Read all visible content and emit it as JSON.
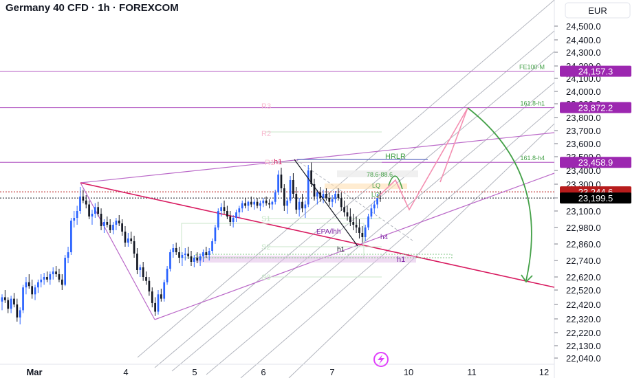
{
  "header": {
    "title": "Germany 40 CFD · 1h · FOREXCOM",
    "currency": "EUR"
  },
  "chart_data": {
    "type": "candlestick",
    "symbol": "Germany 40 CFD",
    "interval": "1h",
    "source": "FOREXCOM",
    "currency": "EUR",
    "y_axis_ticks": [
      24500,
      24400,
      24300,
      24200,
      24100,
      24000,
      23900,
      23800,
      23700,
      23600,
      23500,
      23400,
      23300,
      23200,
      23100,
      22980,
      22860,
      22740,
      22620,
      22520,
      22420,
      22320,
      22220,
      22130,
      22040
    ],
    "ylim": [
      22000,
      24600
    ],
    "x_axis_labels": [
      "Mar",
      "4",
      "5",
      "6",
      "7",
      "10",
      "11",
      "12"
    ],
    "price_labels": [
      {
        "value": "24,157.3",
        "color": "#9c27b0"
      },
      {
        "value": "23,872.2",
        "color": "#9c27b0"
      },
      {
        "value": "23,458.9",
        "color": "#9c27b0"
      },
      {
        "value": "23,244.6",
        "color": "#b71c1c"
      },
      {
        "value": "23,199.5",
        "color": "#000000"
      }
    ],
    "horizontal_levels": [
      {
        "label": "FE100-M",
        "value": 24157.3
      },
      {
        "label": "161.8-h1",
        "value": 23872.2
      },
      {
        "label": "161.8-h4",
        "value": 23458.9
      }
    ],
    "annotations": [
      "R3",
      "R2",
      "R1",
      "S1",
      "S2",
      "S3",
      "HRLR",
      "78.6-88.6",
      "LQ",
      "LQ",
      "EPA/lhh",
      "h1",
      "h1",
      "h4",
      "h1"
    ],
    "candles": [
      [
        22440,
        22490,
        22380,
        22470
      ],
      [
        22470,
        22520,
        22430,
        22450
      ],
      [
        22450,
        22470,
        22360,
        22390
      ],
      [
        22390,
        22480,
        22360,
        22460
      ],
      [
        22460,
        22500,
        22400,
        22420
      ],
      [
        22420,
        22460,
        22300,
        22330
      ],
      [
        22330,
        22400,
        22280,
        22380
      ],
      [
        22380,
        22560,
        22360,
        22540
      ],
      [
        22540,
        22620,
        22490,
        22580
      ],
      [
        22580,
        22640,
        22530,
        22550
      ],
      [
        22550,
        22600,
        22460,
        22490
      ],
      [
        22490,
        22560,
        22450,
        22540
      ],
      [
        22540,
        22600,
        22500,
        22580
      ],
      [
        22580,
        22640,
        22540,
        22600
      ],
      [
        22600,
        22650,
        22560,
        22620
      ],
      [
        22620,
        22660,
        22580,
        22600
      ],
      [
        22600,
        22660,
        22560,
        22640
      ],
      [
        22640,
        22690,
        22600,
        22660
      ],
      [
        22660,
        22700,
        22620,
        22640
      ],
      [
        22640,
        22680,
        22580,
        22600
      ],
      [
        22600,
        22640,
        22520,
        22560
      ],
      [
        22560,
        22780,
        22550,
        22760
      ],
      [
        22760,
        22840,
        22720,
        22800
      ],
      [
        22800,
        23050,
        22780,
        23030
      ],
      [
        23030,
        23100,
        22980,
        23050
      ],
      [
        23050,
        23140,
        23000,
        23100
      ],
      [
        23100,
        23280,
        23080,
        23210
      ],
      [
        23210,
        23260,
        23160,
        23180
      ],
      [
        23180,
        23220,
        23120,
        23150
      ],
      [
        23150,
        23180,
        23040,
        23060
      ],
      [
        23060,
        23110,
        23000,
        23080
      ],
      [
        23080,
        23160,
        23050,
        23130
      ],
      [
        23130,
        23170,
        23060,
        23080
      ],
      [
        23080,
        23120,
        22960,
        22990
      ],
      [
        22990,
        23040,
        22940,
        23020
      ],
      [
        23020,
        23060,
        22980,
        23000
      ],
      [
        23000,
        23040,
        22940,
        22960
      ],
      [
        22960,
        23020,
        22930,
        23000
      ],
      [
        23000,
        23050,
        22960,
        23030
      ],
      [
        23030,
        23070,
        22990,
        23010
      ],
      [
        23010,
        23040,
        22920,
        22950
      ],
      [
        22950,
        22990,
        22840,
        22870
      ],
      [
        22870,
        22940,
        22840,
        22900
      ],
      [
        22900,
        22950,
        22860,
        22880
      ],
      [
        22880,
        22920,
        22760,
        22790
      ],
      [
        22790,
        22830,
        22640,
        22670
      ],
      [
        22670,
        22710,
        22620,
        22690
      ],
      [
        22690,
        22730,
        22590,
        22620
      ],
      [
        22620,
        22660,
        22560,
        22590
      ],
      [
        22590,
        22620,
        22480,
        22510
      ],
      [
        22510,
        22540,
        22400,
        22430
      ],
      [
        22430,
        22470,
        22340,
        22370
      ],
      [
        22370,
        22520,
        22350,
        22490
      ],
      [
        22490,
        22530,
        22440,
        22460
      ],
      [
        22460,
        22600,
        22440,
        22580
      ],
      [
        22580,
        22700,
        22560,
        22680
      ],
      [
        22680,
        22820,
        22660,
        22800
      ],
      [
        22800,
        22860,
        22760,
        22830
      ],
      [
        22830,
        22870,
        22780,
        22800
      ],
      [
        22800,
        22840,
        22720,
        22760
      ],
      [
        22760,
        22800,
        22700,
        22780
      ],
      [
        22780,
        22830,
        22740,
        22790
      ],
      [
        22790,
        22840,
        22750,
        22770
      ],
      [
        22770,
        22810,
        22700,
        22730
      ],
      [
        22730,
        22780,
        22690,
        22760
      ],
      [
        22760,
        22800,
        22720,
        22740
      ],
      [
        22740,
        22790,
        22700,
        22770
      ],
      [
        22770,
        22820,
        22730,
        22800
      ],
      [
        22800,
        22840,
        22760,
        22780
      ],
      [
        22780,
        22830,
        22740,
        22810
      ],
      [
        22810,
        22900,
        22790,
        22880
      ],
      [
        22880,
        23000,
        22860,
        22980
      ],
      [
        22980,
        23120,
        22960,
        23100
      ],
      [
        23100,
        23160,
        23060,
        23130
      ],
      [
        23130,
        23180,
        23080,
        23100
      ],
      [
        23100,
        23140,
        23040,
        23060
      ],
      [
        23060,
        23100,
        22990,
        23020
      ],
      [
        23020,
        23070,
        22980,
        23050
      ],
      [
        23050,
        23110,
        23020,
        23090
      ],
      [
        23090,
        23140,
        23050,
        23120
      ],
      [
        23120,
        23180,
        23090,
        23160
      ],
      [
        23160,
        23200,
        23120,
        23140
      ],
      [
        23140,
        23180,
        23100,
        23170
      ],
      [
        23170,
        23210,
        23130,
        23150
      ],
      [
        23150,
        23190,
        23110,
        23170
      ],
      [
        23170,
        23200,
        23120,
        23140
      ],
      [
        23140,
        23180,
        23100,
        23160
      ],
      [
        23160,
        23200,
        23130,
        23180
      ],
      [
        23180,
        23210,
        23140,
        23160
      ],
      [
        23160,
        23190,
        23120,
        23150
      ],
      [
        23150,
        23180,
        23110,
        23170
      ],
      [
        23170,
        23260,
        23150,
        23240
      ],
      [
        23240,
        23400,
        23220,
        23370
      ],
      [
        23370,
        23420,
        23240,
        23270
      ],
      [
        23270,
        23300,
        23100,
        23140
      ],
      [
        23140,
        23200,
        23080,
        23180
      ],
      [
        23180,
        23360,
        23160,
        23330
      ],
      [
        23330,
        23380,
        23200,
        23230
      ],
      [
        23230,
        23280,
        23080,
        23110
      ],
      [
        23110,
        23200,
        23060,
        23170
      ],
      [
        23170,
        23230,
        23090,
        23120
      ],
      [
        23120,
        23180,
        23050,
        23150
      ],
      [
        23150,
        23440,
        23130,
        23400
      ],
      [
        23400,
        23458,
        23280,
        23300
      ],
      [
        23300,
        23340,
        23180,
        23210
      ],
      [
        23210,
        23260,
        23150,
        23240
      ],
      [
        23240,
        23280,
        23170,
        23200
      ],
      [
        23200,
        23260,
        23160,
        23230
      ],
      [
        23230,
        23270,
        23180,
        23200
      ],
      [
        23200,
        23240,
        23140,
        23170
      ],
      [
        23170,
        23220,
        23130,
        23190
      ],
      [
        23190,
        23250,
        23160,
        23230
      ],
      [
        23230,
        23270,
        23180,
        23200
      ],
      [
        23200,
        23240,
        23100,
        23130
      ],
      [
        23130,
        23180,
        23060,
        23090
      ],
      [
        23090,
        23140,
        23030,
        23060
      ],
      [
        23060,
        23120,
        22990,
        23020
      ],
      [
        23020,
        23080,
        22960,
        23000
      ],
      [
        23000,
        23060,
        22940,
        22980
      ],
      [
        22980,
        23040,
        22900,
        22940
      ],
      [
        22940,
        22990,
        22870,
        22910
      ],
      [
        22910,
        23000,
        22880,
        22980
      ],
      [
        22980,
        23080,
        22960,
        23060
      ],
      [
        23060,
        23150,
        23040,
        23120
      ],
      [
        23120,
        23180,
        23080,
        23150
      ],
      [
        23150,
        23230,
        23120,
        23200
      ],
      [
        23200,
        23250,
        23170,
        23199.5
      ]
    ]
  }
}
